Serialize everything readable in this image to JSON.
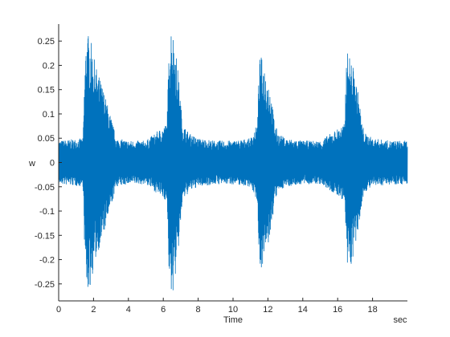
{
  "chart_data": {
    "type": "line",
    "title": "",
    "xlabel": "Time",
    "ylabel": "w",
    "x_unit_label": "sec",
    "xlim": [
      0,
      20
    ],
    "ylim": [
      -0.285,
      0.285
    ],
    "xticks": [
      0,
      2,
      4,
      6,
      8,
      10,
      12,
      14,
      16,
      18
    ],
    "xtick_labels": [
      "0",
      "2",
      "4",
      "6",
      "8",
      "10",
      "12",
      "14",
      "16",
      "18"
    ],
    "yticks": [
      -0.25,
      -0.2,
      -0.15,
      -0.1,
      -0.05,
      0,
      0.05,
      0.1,
      0.15,
      0.2,
      0.25
    ],
    "ytick_labels": [
      "-0.25",
      "-0.2",
      "-0.15",
      "-0.1",
      "-0.05",
      "0",
      "0.05",
      "0.1",
      "0.15",
      "0.2",
      "0.25"
    ],
    "grid": false,
    "line_color": "#0072BD",
    "series": [
      {
        "x": [
          0.0,
          1.4,
          1.5,
          1.6,
          1.8,
          2.0,
          2.2,
          2.5,
          2.8,
          3.1,
          3.3,
          4.0,
          5.0,
          6.2,
          6.35,
          6.45,
          6.6,
          6.75,
          6.9,
          7.1,
          7.5,
          8.0,
          9.0,
          10.0,
          11.0,
          11.4,
          11.5,
          11.6,
          11.8,
          12.1,
          12.4,
          12.6,
          13.0,
          14.0,
          15.0,
          16.4,
          16.5,
          16.6,
          16.8,
          17.0,
          17.2,
          17.4,
          17.6,
          18.0,
          19.0,
          20.0
        ],
        "envelope": [
          0.045,
          0.05,
          0.2,
          0.27,
          0.26,
          0.22,
          0.19,
          0.16,
          0.12,
          0.08,
          0.05,
          0.045,
          0.045,
          0.08,
          0.25,
          0.285,
          0.26,
          0.22,
          0.17,
          0.08,
          0.06,
          0.05,
          0.045,
          0.045,
          0.05,
          0.08,
          0.21,
          0.22,
          0.2,
          0.16,
          0.08,
          0.06,
          0.05,
          0.045,
          0.045,
          0.08,
          0.22,
          0.23,
          0.21,
          0.18,
          0.14,
          0.08,
          0.06,
          0.05,
          0.045,
          0.045
        ]
      }
    ]
  }
}
